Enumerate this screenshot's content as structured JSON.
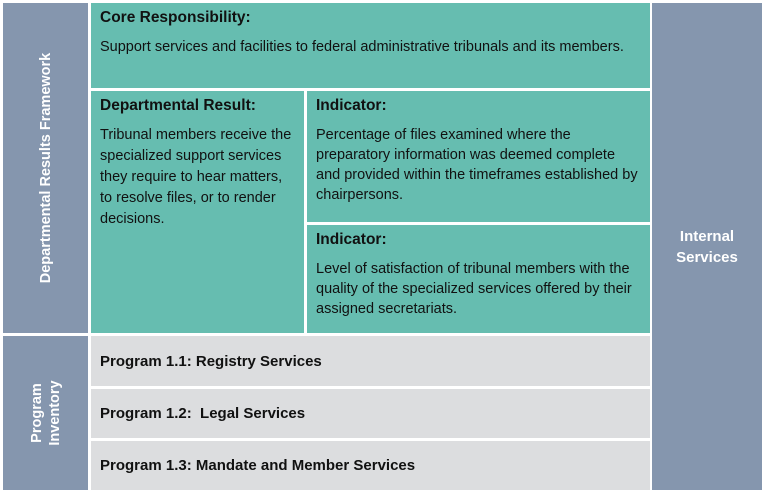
{
  "side_labels": {
    "framework": "Departmental Results Framework",
    "inventory": "Program Inventory",
    "internal": "Internal Services"
  },
  "core": {
    "title": "Core Responsibility:",
    "text": "Support services and facilities to federal administrative tribunals and its members."
  },
  "result": {
    "title": "Departmental Result:",
    "text": "Tribunal members receive the specialized support services they require to hear matters, to resolve files, or to render decisions."
  },
  "indicators": [
    {
      "title": "Indicator:",
      "text": "Percentage of files examined where the preparatory information was deemed complete and provided within the timeframes established by chairpersons."
    },
    {
      "title": "Indicator:",
      "text": "Level of satisfaction of tribunal members with the quality of the specialized services offered by their assigned secretariats."
    }
  ],
  "programs": [
    "Program 1.1: Registry Services",
    "Program 1.2:  Legal Services",
    "Program 1.3: Mandate and Member Services"
  ],
  "colors": {
    "teal": "#66bdb0",
    "slate": "#8596ae",
    "gray": "#dcdddf"
  }
}
